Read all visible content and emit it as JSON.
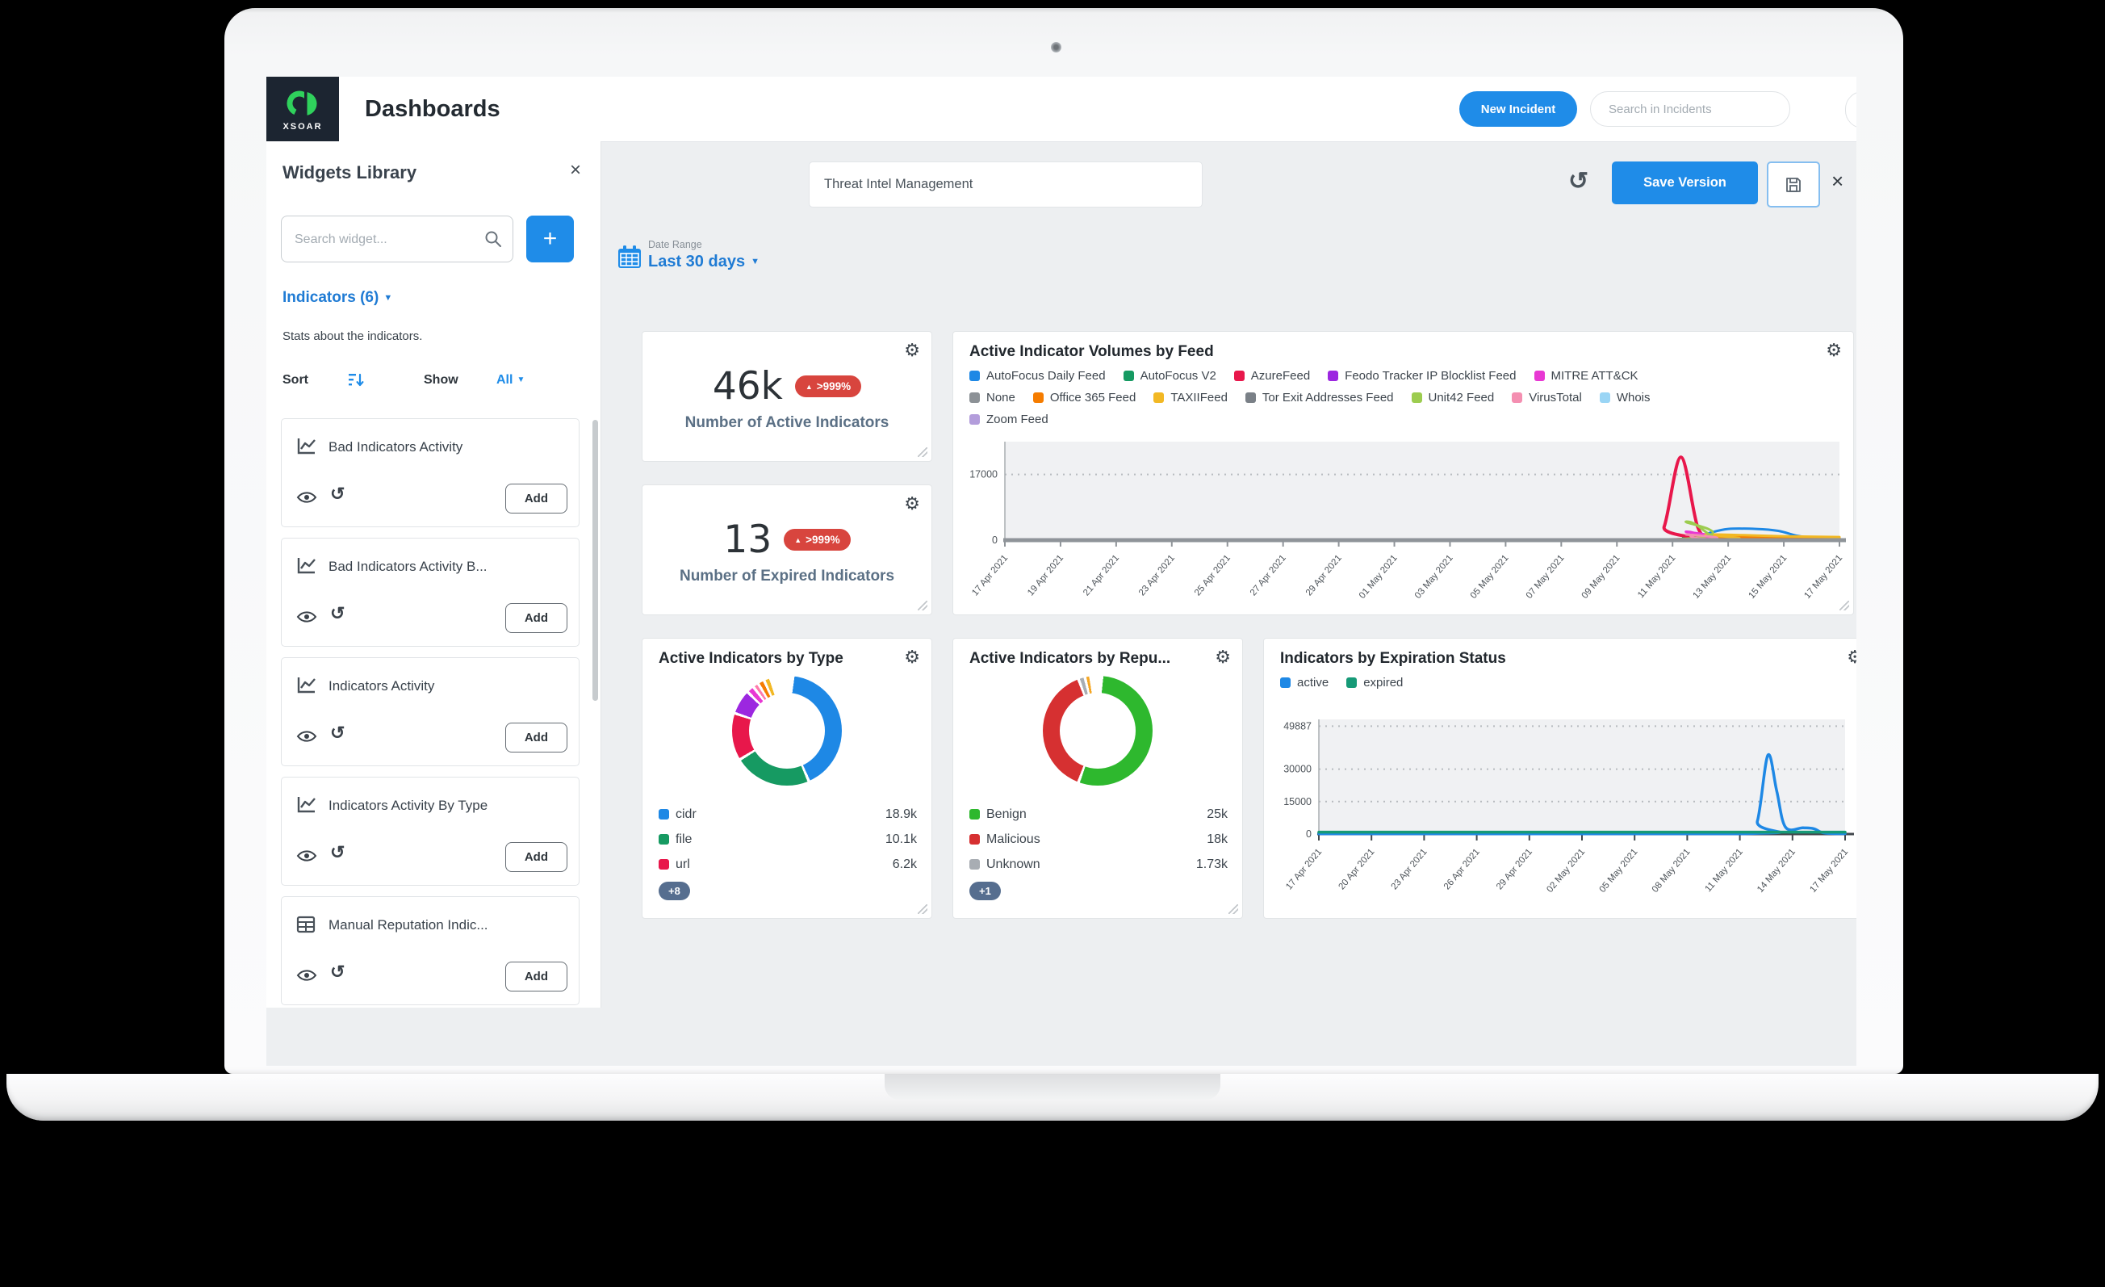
{
  "icons": {
    "gear": "⚙",
    "caret": "▼",
    "close": "×",
    "triangle_up": "▲",
    "history": "↺",
    "plus": "+"
  },
  "navbar": {
    "title": "Dashboards",
    "logo_text": "XSOAR",
    "new_incident": "New Incident",
    "search_placeholder": "Search in Incidents"
  },
  "sidebar": {
    "title": "Widgets Library",
    "search_placeholder": "Search widget...",
    "category": "Indicators (6)",
    "description": "Stats about the indicators.",
    "sort_label": "Sort",
    "show_label": "Show",
    "show_value": "All",
    "add_label": "Add",
    "widgets": [
      {
        "label": "Bad Indicators Activity",
        "icon": "line-chart"
      },
      {
        "label": "Bad Indicators Activity B...",
        "icon": "line-chart"
      },
      {
        "label": "Indicators Activity",
        "icon": "line-chart"
      },
      {
        "label": "Indicators Activity By Type",
        "icon": "line-chart"
      },
      {
        "label": "Manual Reputation Indic...",
        "icon": "table"
      }
    ]
  },
  "toolbar": {
    "dashboard_name": "Threat Intel Management",
    "save_version": "Save Version",
    "date_range_label": "Date Range",
    "date_range_value": "Last 30 days"
  },
  "stats": [
    {
      "value": "46k",
      "delta": ">999%",
      "label": "Number of Active Indicators"
    },
    {
      "value": "13",
      "delta": ">999%",
      "label": "Number of Expired Indicators"
    }
  ],
  "colors": {
    "accent": "#1f8ce8",
    "badge_red": "#d8453e",
    "active_blue": "#1e88e5",
    "expired_green": "#169a77"
  },
  "chart_data": [
    {
      "type": "line",
      "title": "Active Indicator Volumes by Feed",
      "legend_position": "top",
      "grid": "dashed",
      "xlim": [
        0,
        30
      ],
      "ylim": [
        0,
        25500
      ],
      "y_ticks": [
        {
          "v": 17000,
          "label": "17000"
        },
        {
          "v": 0,
          "label": "0"
        }
      ],
      "x_tick_labels": [
        "17 Apr 2021",
        "19 Apr 2021",
        "21 Apr 2021",
        "23 Apr 2021",
        "25 Apr 2021",
        "27 Apr 2021",
        "29 Apr 2021",
        "01 May 2021",
        "03 May 2021",
        "05 May 2021",
        "07 May 2021",
        "09 May 2021",
        "11 May 2021",
        "13 May 2021",
        "15 May 2021",
        "17 May 2021"
      ],
      "legend_rows": [
        5,
        7,
        1
      ],
      "series": [
        {
          "name": "AutoFocus Daily Feed",
          "color": "#1e88e5",
          "w": 3,
          "points": [
            [
              0,
              60
            ],
            [
              23,
              60
            ],
            [
              24.6,
              200
            ],
            [
              25.3,
              1800
            ],
            [
              26,
              2900
            ],
            [
              27,
              2900
            ],
            [
              27.8,
              2400
            ],
            [
              28.5,
              1100
            ],
            [
              29.2,
              500
            ],
            [
              30,
              420
            ]
          ]
        },
        {
          "name": "AutoFocus V2",
          "color": "#169a62",
          "w": 3,
          "points": [
            [
              0,
              40
            ],
            [
              23.3,
              40
            ],
            [
              24.4,
              900
            ],
            [
              25.3,
              200
            ],
            [
              30,
              60
            ]
          ]
        },
        {
          "name": "AzureFeed",
          "color": "#e8174b",
          "w": 4,
          "points": [
            [
              0,
              5
            ],
            [
              23.2,
              5
            ],
            [
              23.7,
              3500
            ],
            [
              24.3,
              21500
            ],
            [
              24.9,
              3500
            ],
            [
              25.4,
              300
            ],
            [
              26,
              60
            ],
            [
              30,
              50
            ]
          ]
        },
        {
          "name": "Feodo Tracker IP Blocklist Feed",
          "color": "#9c27e0",
          "w": 3,
          "points": [
            [
              0,
              30
            ],
            [
              30,
              30
            ]
          ]
        },
        {
          "name": "MITRE ATT&CK",
          "color": "#e838d3",
          "w": 3,
          "points": [
            [
              0,
              5
            ],
            [
              23.4,
              5
            ],
            [
              24.5,
              2200
            ],
            [
              25.3,
              400
            ],
            [
              26,
              80
            ],
            [
              30,
              60
            ]
          ]
        },
        {
          "name": "None",
          "color": "#8c9196",
          "w": 3,
          "points": [
            [
              0,
              20
            ],
            [
              30,
              20
            ]
          ]
        },
        {
          "name": "Office 365 Feed",
          "color": "#f57c00",
          "w": 3,
          "points": [
            [
              0,
              5
            ],
            [
              24.6,
              5
            ],
            [
              25.4,
              900
            ],
            [
              27,
              800
            ],
            [
              30,
              600
            ]
          ]
        },
        {
          "name": "TAXIIFeed",
          "color": "#f2b824",
          "w": 3,
          "points": [
            [
              0,
              5
            ],
            [
              24.4,
              5
            ],
            [
              25.2,
              1400
            ],
            [
              26.5,
              1300
            ],
            [
              28,
              1000
            ],
            [
              30,
              800
            ]
          ]
        },
        {
          "name": "Tor Exit Addresses Feed",
          "color": "#7a8087",
          "w": 3,
          "points": [
            [
              0,
              25
            ],
            [
              30,
              25
            ]
          ]
        },
        {
          "name": "Unit42 Feed",
          "color": "#9ccc4f",
          "w": 3,
          "points": [
            [
              0,
              5
            ],
            [
              23.4,
              5
            ],
            [
              24.5,
              4800
            ],
            [
              25.5,
              700
            ],
            [
              26.2,
              150
            ],
            [
              30,
              100
            ]
          ]
        },
        {
          "name": "VirusTotal",
          "color": "#f48fb1",
          "w": 3,
          "points": [
            [
              0,
              5
            ],
            [
              23.6,
              5
            ],
            [
              24.5,
              1500
            ],
            [
              25.3,
              250
            ],
            [
              30,
              80
            ]
          ]
        },
        {
          "name": "Whois",
          "color": "#9ad5f5",
          "w": 3,
          "points": [
            [
              0,
              15
            ],
            [
              30,
              15
            ]
          ]
        },
        {
          "name": "Zoom Feed",
          "color": "#b39ddb",
          "w": 3,
          "points": [
            [
              0,
              10
            ],
            [
              30,
              10
            ]
          ]
        }
      ]
    },
    {
      "type": "donut",
      "title": "Active Indicators by Type",
      "start": 8,
      "segments": [
        {
          "label": "cidr",
          "color": "#1e88e5",
          "deg": 150
        },
        {
          "label": "file",
          "color": "#169a62",
          "deg": 82
        },
        {
          "label": "url",
          "color": "#e8174b",
          "deg": 50
        },
        {
          "label": "other-purple",
          "color": "#9c27e0",
          "deg": 26
        },
        {
          "label": "other-magenta",
          "color": "#e838d3",
          "deg": 8
        },
        {
          "label": "other-pink",
          "color": "#ff7bac",
          "deg": 6
        },
        {
          "label": "other-orange",
          "color": "#f57c00",
          "deg": 7
        },
        {
          "label": "other-yellow",
          "color": "#f2b824",
          "deg": 7
        }
      ],
      "legend": [
        {
          "label": "cidr",
          "color": "#1e88e5",
          "value": "18.9k"
        },
        {
          "label": "file",
          "color": "#169a62",
          "value": "10.1k"
        },
        {
          "label": "url",
          "color": "#e8174b",
          "value": "6.2k"
        }
      ],
      "more": "+8"
    },
    {
      "type": "donut",
      "title": "Active Indicators by Repu...",
      "start": 6,
      "segments": [
        {
          "label": "Benign",
          "color": "#2eb82e",
          "deg": 196
        },
        {
          "label": "Malicious",
          "color": "#d63031",
          "deg": 139
        },
        {
          "label": "Unknown",
          "color": "#a8adb3",
          "deg": 7
        },
        {
          "label": "other",
          "color": "#f5a623",
          "deg": 6
        }
      ],
      "legend": [
        {
          "label": "Benign",
          "color": "#2eb82e",
          "value": "25k"
        },
        {
          "label": "Malicious",
          "color": "#d63031",
          "value": "18k"
        },
        {
          "label": "Unknown",
          "color": "#a8adb3",
          "value": "1.73k"
        }
      ],
      "more": "+1"
    },
    {
      "type": "line",
      "title": "Indicators by Expiration Status",
      "legend_position": "top",
      "grid": "dashed",
      "xlim": [
        0,
        30
      ],
      "ylim": [
        0,
        53000
      ],
      "y_ticks": [
        {
          "v": 49887,
          "label": "49887"
        },
        {
          "v": 30000,
          "label": "30000"
        },
        {
          "v": 15000,
          "label": "15000"
        },
        {
          "v": 0,
          "label": "0"
        }
      ],
      "x_tick_labels": [
        "17 Apr 2021",
        "20 Apr 2021",
        "23 Apr 2021",
        "26 Apr 2021",
        "29 Apr 2021",
        "02 May 2021",
        "05 May 2021",
        "08 May 2021",
        "11 May 2021",
        "14 May 2021",
        "17 May 2021"
      ],
      "legend_rows": [
        2
      ],
      "series": [
        {
          "name": "active",
          "color": "#1e88e5",
          "w": 3.5,
          "points": [
            [
              0,
              150
            ],
            [
              24.3,
              150
            ],
            [
              25,
              6000
            ],
            [
              25.6,
              36500
            ],
            [
              26.1,
              20000
            ],
            [
              26.6,
              3200
            ],
            [
              27.6,
              2900
            ],
            [
              28.2,
              2500
            ],
            [
              28.7,
              700
            ],
            [
              29.3,
              250
            ],
            [
              30,
              200
            ]
          ]
        },
        {
          "name": "expired",
          "color": "#169a77",
          "w": 3.5,
          "points": [
            [
              0,
              900
            ],
            [
              30,
              900
            ]
          ]
        }
      ]
    }
  ]
}
